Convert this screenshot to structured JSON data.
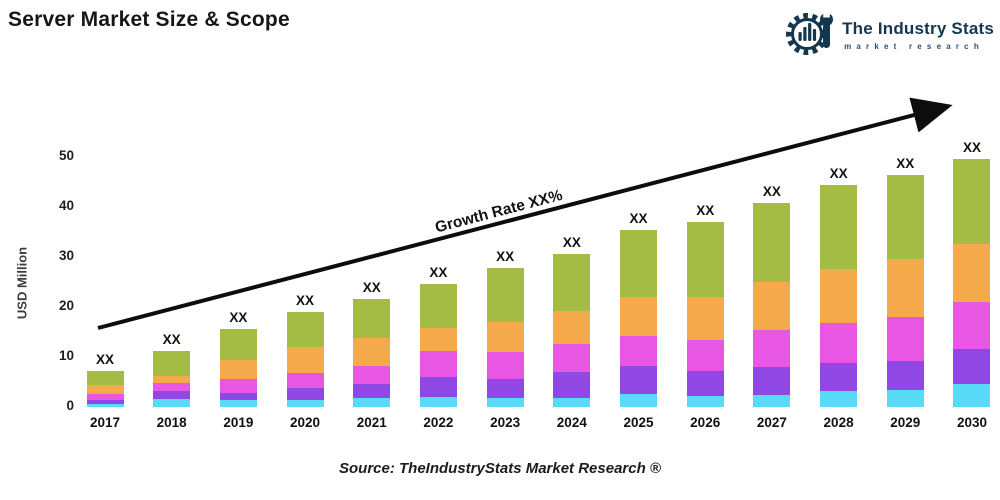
{
  "header": {
    "title": "Server Market Size & Scope"
  },
  "brand": {
    "name": "The Industry Stats",
    "tagline": "market research",
    "color": "#14374e"
  },
  "annotations": {
    "growth_label": "Growth Rate XX%",
    "bar_value_label": "XX"
  },
  "source": {
    "text": "Source: TheIndustryStats Market Research ®"
  },
  "chart_data": {
    "type": "bar",
    "stacked": true,
    "title": "Server Market Size & Scope",
    "xlabel": "",
    "ylabel": "USD Million",
    "ylim": [
      0,
      55
    ],
    "yticks": [
      0,
      10,
      20,
      30,
      40,
      50
    ],
    "grid": false,
    "legend_position": "none",
    "bar_value_labels": "XX",
    "categories": [
      "2017",
      "2018",
      "2019",
      "2020",
      "2021",
      "2022",
      "2023",
      "2024",
      "2025",
      "2026",
      "2027",
      "2028",
      "2029",
      "2030"
    ],
    "stack_order": "bottom-to-top",
    "series": [
      {
        "name": "segment-cyan",
        "color": "#57dbf7",
        "values": [
          0.7,
          1.6,
          1.4,
          1.4,
          1.8,
          2.1,
          1.8,
          1.8,
          2.7,
          2.3,
          2.4,
          3.2,
          3.5,
          4.6
        ]
      },
      {
        "name": "segment-purple",
        "color": "#9048e4",
        "values": [
          0.8,
          1.6,
          1.4,
          2.5,
          2.8,
          3.9,
          3.9,
          5.2,
          5.5,
          5.0,
          5.7,
          5.6,
          5.7,
          7.0
        ]
      },
      {
        "name": "segment-magenta",
        "color": "#e856e4",
        "values": [
          1.2,
          1.6,
          2.8,
          2.9,
          3.7,
          5.2,
          5.4,
          5.7,
          6.1,
          6.1,
          7.3,
          8.0,
          8.9,
          9.5
        ]
      },
      {
        "name": "segment-orange",
        "color": "#f4a94b",
        "values": [
          1.8,
          1.5,
          3.9,
          5.2,
          5.6,
          4.6,
          6.0,
          6.5,
          7.7,
          8.6,
          9.6,
          10.9,
          11.5,
          11.6
        ]
      },
      {
        "name": "segment-green",
        "color": "#a4bc44",
        "values": [
          2.7,
          4.9,
          6.2,
          7.1,
          7.8,
          8.9,
          10.8,
          11.5,
          13.5,
          15.0,
          15.8,
          16.7,
          16.9,
          16.9
        ]
      }
    ],
    "estimated_totals": [
      7.2,
      11.2,
      15.7,
      19.1,
      21.7,
      24.7,
      27.9,
      30.7,
      35.5,
      37.0,
      40.8,
      44.4,
      46.5,
      49.6
    ]
  }
}
